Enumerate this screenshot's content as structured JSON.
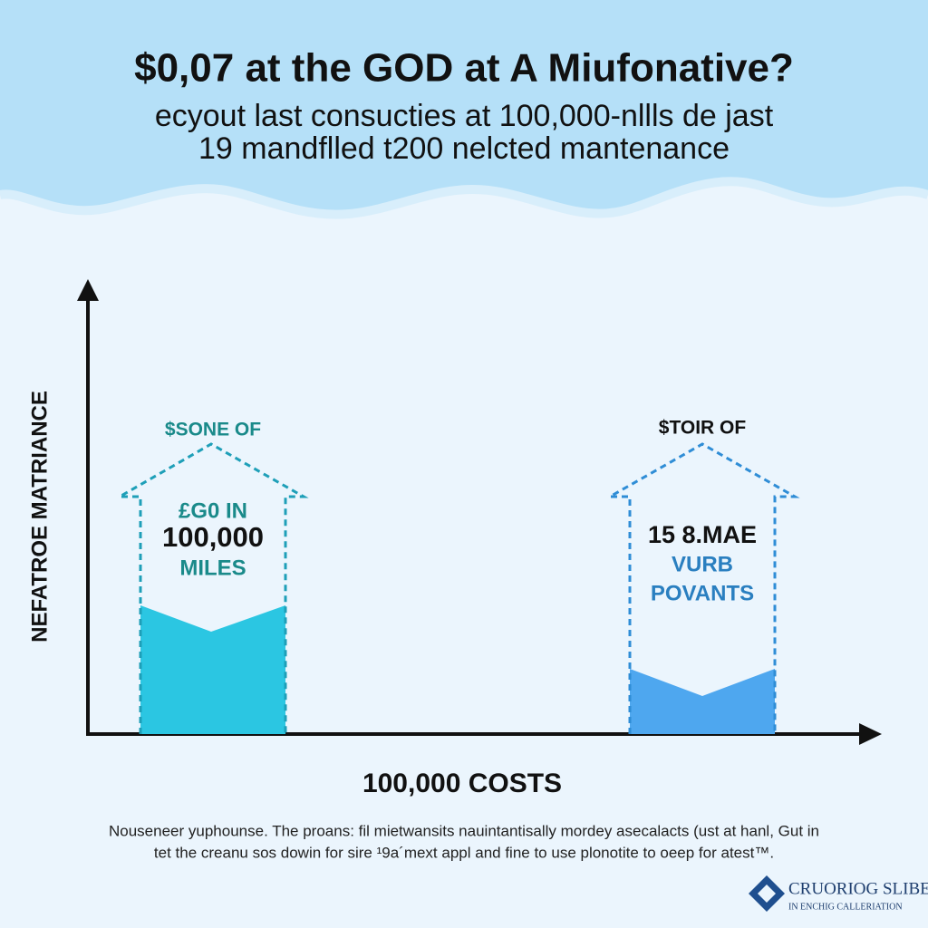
{
  "header": {
    "title": "$0,07 at the GOD at A Miufonative?",
    "subtitle": [
      "ecyout last consucties at 100,000-nllls de jast",
      "19 mandflled t200 nelcted mantenance"
    ]
  },
  "y_axis_label": "NEFATROE MATRIANCE",
  "x_axis_label": "100,000 COSTS",
  "columns": [
    {
      "label": "$SONE OF",
      "lines": [
        "£G0 IN",
        "100,000",
        "MILES"
      ]
    },
    {
      "label": "$TOIR OF",
      "lines": [
        "15 8.MAE",
        "VURB",
        "POVANTS"
      ]
    }
  ],
  "footnote": [
    "Nouseneer yuphounse. The proans: fil mietwansits nauintantisally mordey asecalacts (ust at hanl, Gut in",
    "tet the creanu sos dowin for sire ¹9a´mext appl and fine to use plonotite to oeep for atest™."
  ],
  "logo": {
    "name": "CRUORIOG SLIBE",
    "tagline": "IN ENCHIG CALLERIATION"
  }
}
